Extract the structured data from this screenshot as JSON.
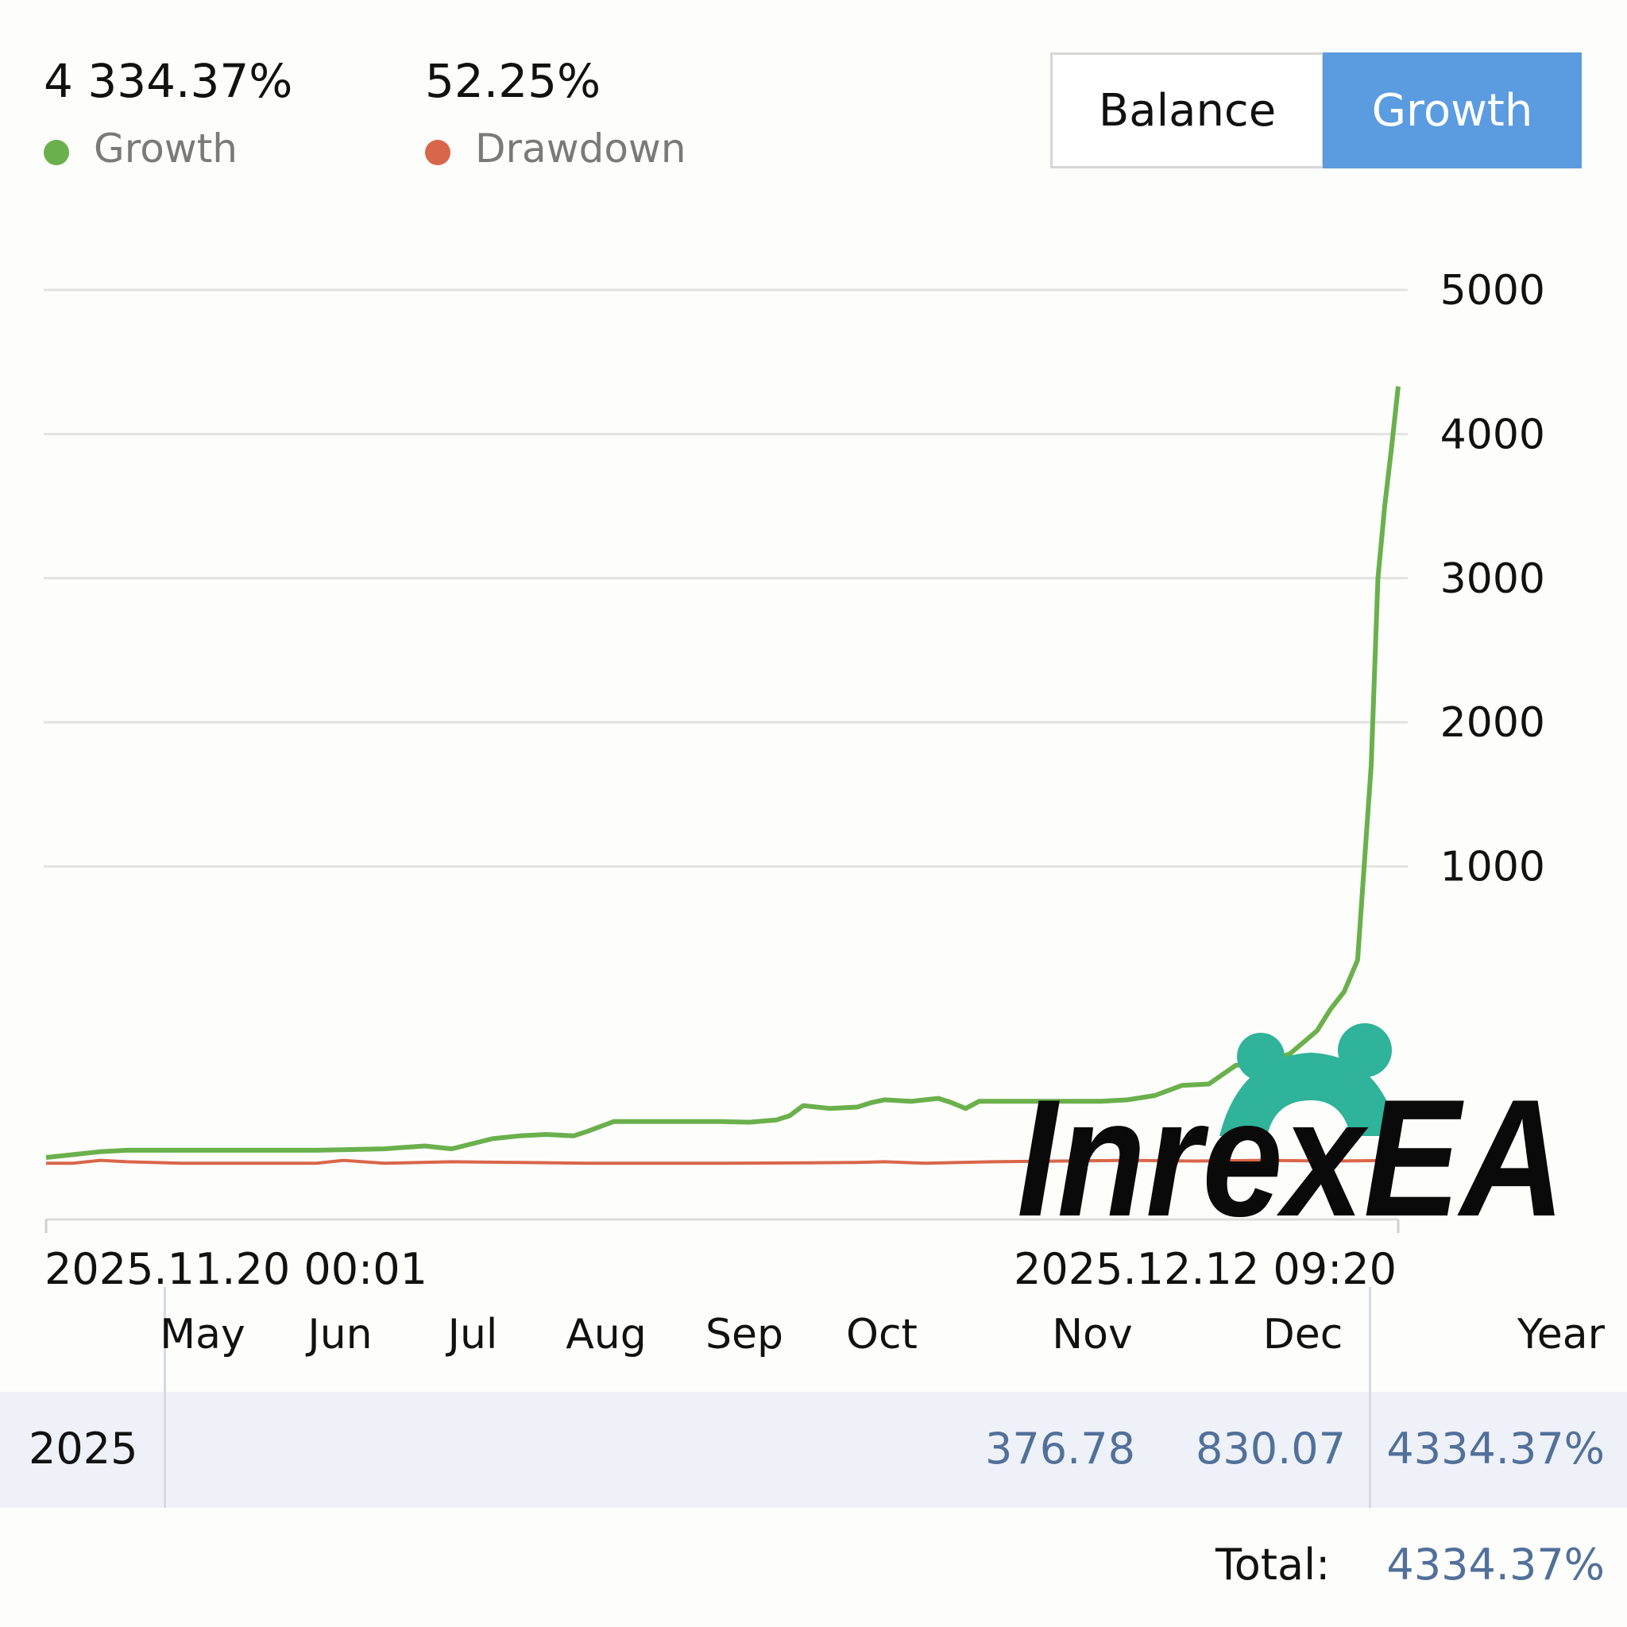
{
  "summary": {
    "growth_value": "4 334.37%",
    "growth_label": "Growth",
    "drawdown_value": "52.25%",
    "drawdown_label": "Drawdown"
  },
  "toggle": {
    "balance_label": "Balance",
    "growth_label": "Growth",
    "active": "Growth"
  },
  "colors": {
    "growth": "#6ab04c",
    "drawdown": "#d9664a",
    "accent": "#5b9be0",
    "table_value": "#51709a",
    "logo_teal": "#2fb39a"
  },
  "chart_data": {
    "type": "line",
    "yticks": [
      "5000",
      "4000",
      "3000",
      "2000",
      "1000"
    ],
    "ylim": [
      -1450,
      5000
    ],
    "x_start_label": "2025.11.20 00:01",
    "x_end_label": "2025.12.12 09:20",
    "series": [
      {
        "name": "Growth",
        "x": [
          0,
          0.02,
          0.04,
          0.06,
          0.1,
          0.2,
          0.25,
          0.28,
          0.3,
          0.33,
          0.35,
          0.37,
          0.39,
          0.4,
          0.42,
          0.44,
          0.46,
          0.5,
          0.52,
          0.54,
          0.55,
          0.56,
          0.58,
          0.6,
          0.61,
          0.62,
          0.64,
          0.65,
          0.66,
          0.67,
          0.68,
          0.69,
          0.7,
          0.71,
          0.72,
          0.74,
          0.78,
          0.8,
          0.82,
          0.84,
          0.86,
          0.88,
          0.9,
          0.92,
          0.94,
          0.95,
          0.96,
          0.97,
          0.98,
          0.985,
          0.99,
          0.995,
          1.0
        ],
        "values": [
          -1020,
          -1000,
          -980,
          -970,
          -970,
          -970,
          -960,
          -940,
          -960,
          -890,
          -870,
          -860,
          -870,
          -840,
          -770,
          -770,
          -770,
          -770,
          -775,
          -760,
          -730,
          -660,
          -680,
          -670,
          -640,
          -620,
          -630,
          -620,
          -610,
          -640,
          -680,
          -630,
          -630,
          -630,
          -630,
          -630,
          -630,
          -620,
          -590,
          -520,
          -510,
          -380,
          -370,
          -300,
          -140,
          10,
          130,
          350,
          1700,
          3000,
          3500,
          3900,
          4330
        ]
      },
      {
        "name": "Drawdown",
        "x": [
          0,
          0.02,
          0.04,
          0.06,
          0.1,
          0.2,
          0.22,
          0.25,
          0.3,
          0.35,
          0.4,
          0.5,
          0.55,
          0.6,
          0.62,
          0.65,
          0.7,
          0.8,
          0.85,
          0.9,
          0.95,
          1.0
        ],
        "values": [
          -1060,
          -1060,
          -1040,
          -1050,
          -1060,
          -1060,
          -1040,
          -1060,
          -1050,
          -1055,
          -1060,
          -1060,
          -1058,
          -1055,
          -1050,
          -1060,
          -1050,
          -1040,
          -1045,
          -1040,
          -1045,
          -1040
        ]
      }
    ]
  },
  "table": {
    "months": [
      "May",
      "Jun",
      "Jul",
      "Aug",
      "Sep",
      "Oct",
      "Nov",
      "Dec"
    ],
    "year_header": "Year",
    "rows": [
      {
        "year": "2025",
        "nov": "376.78",
        "dec": "830.07",
        "total": "4334.37%"
      }
    ],
    "total_label": "Total:",
    "total_value": "4334.37%"
  },
  "watermark": {
    "text": "InrexEA"
  }
}
